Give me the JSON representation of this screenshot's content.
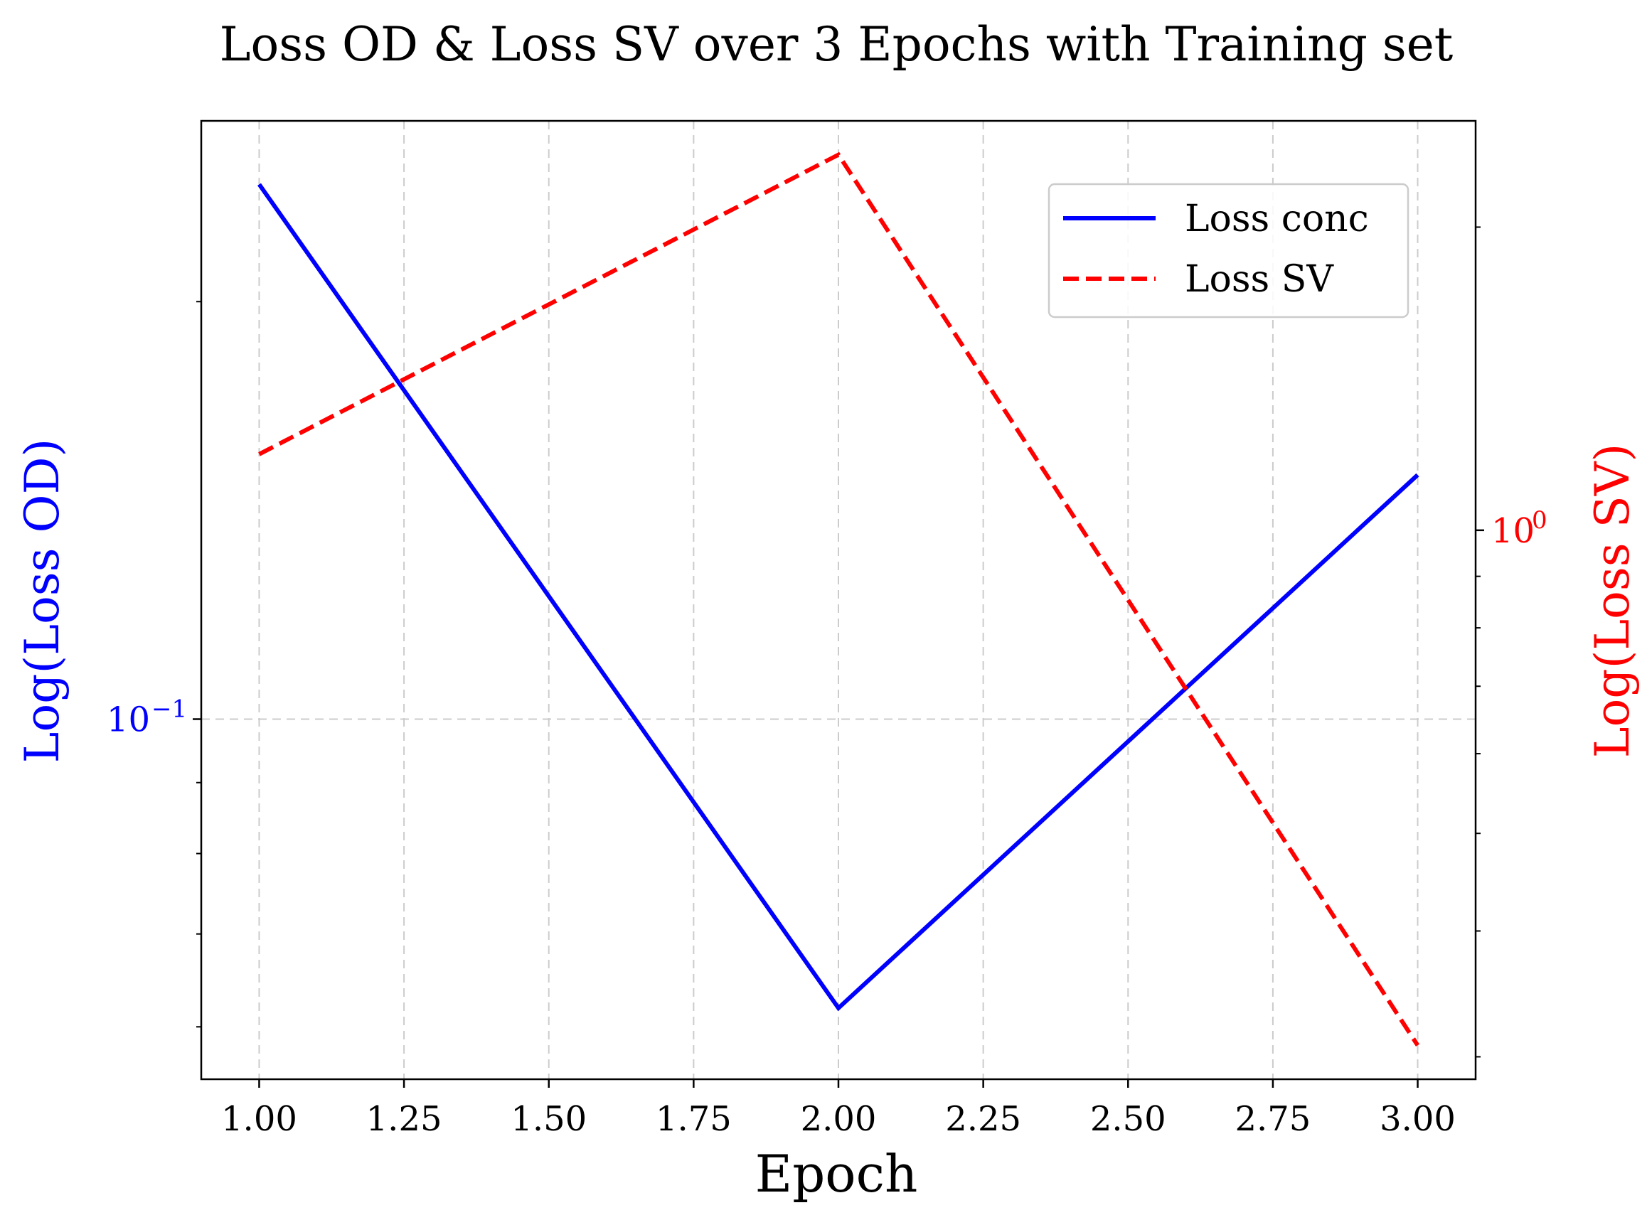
{
  "chart_data": {
    "type": "line",
    "title": "Loss OD & Loss SV over 3 Epochs with Training set",
    "xlabel": "Epoch",
    "ylabel_left": "Log(Loss OD)",
    "ylabel_right": "Log(Loss SV)",
    "x": [
      1,
      2,
      3
    ],
    "xlim": [
      0.9,
      3.1
    ],
    "xticks": [
      "1.00",
      "1.25",
      "1.50",
      "1.75",
      "2.00",
      "2.25",
      "2.50",
      "2.75",
      "3.00"
    ],
    "ylim_left": [
      0.055,
      0.27
    ],
    "ylim_right": [
      0.285,
      2.55
    ],
    "yscale": "log",
    "left_tick_label": "10",
    "left_tick_exp": "−1",
    "right_tick_label": "10",
    "right_tick_exp": "0",
    "series": [
      {
        "name": "Loss conc",
        "axis": "left",
        "values": [
          0.243,
          0.0619,
          0.15
        ],
        "color": "#0000ff",
        "style": "solid"
      },
      {
        "name": "Loss SV",
        "axis": "right",
        "values": [
          1.19,
          2.36,
          0.308
        ],
        "color": "#ff0000",
        "style": "dashed"
      }
    ],
    "grid": true,
    "legend_position": "upper-right"
  }
}
